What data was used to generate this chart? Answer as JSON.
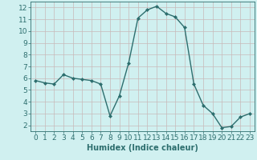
{
  "x": [
    0,
    1,
    2,
    3,
    4,
    5,
    6,
    7,
    8,
    9,
    10,
    11,
    12,
    13,
    14,
    15,
    16,
    17,
    18,
    19,
    20,
    21,
    22,
    23
  ],
  "y": [
    5.8,
    5.6,
    5.5,
    6.3,
    6.0,
    5.9,
    5.8,
    5.5,
    2.8,
    4.5,
    7.3,
    11.1,
    11.8,
    12.1,
    11.5,
    11.2,
    10.3,
    5.5,
    3.7,
    3.0,
    1.8,
    1.9,
    2.7,
    3.0
  ],
  "line_color": "#2d6e6e",
  "marker": "D",
  "marker_size": 2.0,
  "bg_color": "#d0f0f0",
  "grid_color": "#c8b8b8",
  "xlabel": "Humidex (Indice chaleur)",
  "xlim": [
    -0.5,
    23.5
  ],
  "ylim": [
    1.5,
    12.5
  ],
  "yticks": [
    2,
    3,
    4,
    5,
    6,
    7,
    8,
    9,
    10,
    11,
    12
  ],
  "xticks": [
    0,
    1,
    2,
    3,
    4,
    5,
    6,
    7,
    8,
    9,
    10,
    11,
    12,
    13,
    14,
    15,
    16,
    17,
    18,
    19,
    20,
    21,
    22,
    23
  ],
  "xlabel_fontsize": 7,
  "tick_fontsize": 6.5,
  "linewidth": 1.0,
  "axis_color": "#2d6e6e"
}
